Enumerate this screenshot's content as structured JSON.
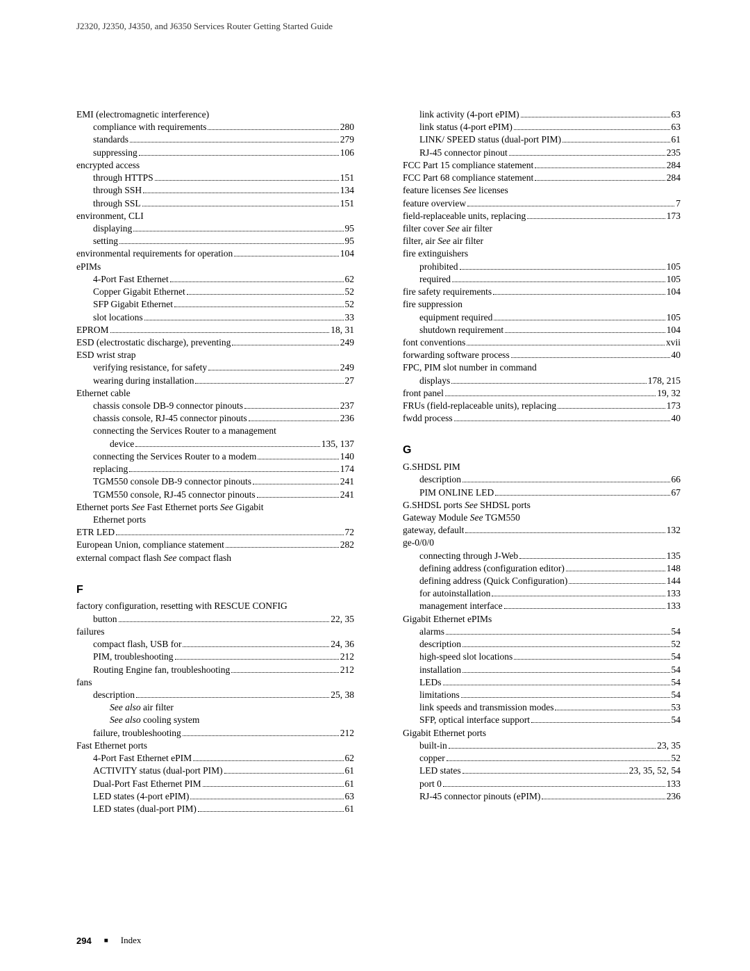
{
  "header": "J2320, J2350, J4350, and J6350 Services Router Getting Started Guide",
  "footer": {
    "page": "294",
    "label": "Index"
  },
  "left": [
    {
      "t": "plain",
      "lvl": 0,
      "txt": "EMI (electromagnetic interference)"
    },
    {
      "t": "e",
      "lvl": 1,
      "txt": "compliance with requirements",
      "pg": "280"
    },
    {
      "t": "e",
      "lvl": 1,
      "txt": "standards",
      "pg": "279"
    },
    {
      "t": "e",
      "lvl": 1,
      "txt": "suppressing",
      "pg": "106"
    },
    {
      "t": "plain",
      "lvl": 0,
      "txt": "encrypted access"
    },
    {
      "t": "e",
      "lvl": 1,
      "txt": "through HTTPS",
      "pg": "151"
    },
    {
      "t": "e",
      "lvl": 1,
      "txt": "through SSH",
      "pg": "134"
    },
    {
      "t": "e",
      "lvl": 1,
      "txt": "through SSL",
      "pg": "151"
    },
    {
      "t": "plain",
      "lvl": 0,
      "txt": "environment, CLI"
    },
    {
      "t": "e",
      "lvl": 1,
      "txt": "displaying",
      "pg": "95"
    },
    {
      "t": "e",
      "lvl": 1,
      "txt": "setting",
      "pg": "95"
    },
    {
      "t": "e",
      "lvl": 0,
      "txt": "environmental requirements for operation",
      "pg": "104"
    },
    {
      "t": "plain",
      "lvl": 0,
      "txt": "ePIMs"
    },
    {
      "t": "e",
      "lvl": 1,
      "txt": "4-Port Fast Ethernet",
      "pg": "62"
    },
    {
      "t": "e",
      "lvl": 1,
      "txt": "Copper Gigabit Ethernet",
      "pg": "52"
    },
    {
      "t": "e",
      "lvl": 1,
      "txt": "SFP Gigabit Ethernet",
      "pg": "52"
    },
    {
      "t": "e",
      "lvl": 1,
      "txt": "slot locations",
      "pg": "33"
    },
    {
      "t": "e",
      "lvl": 0,
      "txt": "EPROM",
      "pg": "18, 31"
    },
    {
      "t": "e",
      "lvl": 0,
      "txt": "ESD (electrostatic discharge), preventing",
      "pg": "249"
    },
    {
      "t": "plain",
      "lvl": 0,
      "txt": "ESD wrist strap"
    },
    {
      "t": "e",
      "lvl": 1,
      "txt": "verifying resistance, for safety",
      "pg": "249"
    },
    {
      "t": "e",
      "lvl": 1,
      "txt": "wearing during installation",
      "pg": "27"
    },
    {
      "t": "plain",
      "lvl": 0,
      "txt": "Ethernet cable"
    },
    {
      "t": "e",
      "lvl": 1,
      "txt": "chassis console DB-9 connector pinouts",
      "pg": "237"
    },
    {
      "t": "e",
      "lvl": 1,
      "txt": "chassis console, RJ-45 connector pinouts",
      "pg": "236"
    },
    {
      "t": "plain",
      "lvl": 1,
      "txt": "connecting the Services Router to a management"
    },
    {
      "t": "e",
      "lvl": 2,
      "txt": "device",
      "pg": "135, 137"
    },
    {
      "t": "e",
      "lvl": 1,
      "txt": "connecting the Services Router to a modem",
      "pg": "140"
    },
    {
      "t": "e",
      "lvl": 1,
      "txt": "replacing",
      "pg": "174"
    },
    {
      "t": "e",
      "lvl": 1,
      "txt": "TGM550 console DB-9 connector pinouts",
      "pg": "241"
    },
    {
      "t": "e",
      "lvl": 1,
      "txt": "TGM550 console, RJ-45 connector pinouts",
      "pg": "241"
    },
    {
      "t": "plain",
      "lvl": 0,
      "html": "Ethernet ports <span class=\"italic\">See</span> Fast Ethernet ports <span class=\"italic\">See</span> Gigabit"
    },
    {
      "t": "plain",
      "lvl": 1,
      "txt": "Ethernet ports"
    },
    {
      "t": "e",
      "lvl": 0,
      "txt": "ETR LED",
      "pg": "72"
    },
    {
      "t": "e",
      "lvl": 0,
      "txt": "European Union, compliance statement",
      "pg": "282"
    },
    {
      "t": "plain",
      "lvl": 0,
      "html": "external compact flash <span class=\"italic\">See</span> compact flash"
    },
    {
      "t": "heading",
      "txt": "F"
    },
    {
      "t": "plain",
      "lvl": 0,
      "txt": "factory configuration, resetting with RESCUE CONFIG"
    },
    {
      "t": "e",
      "lvl": 1,
      "txt": "button",
      "pg": "22, 35"
    },
    {
      "t": "plain",
      "lvl": 0,
      "txt": "failures"
    },
    {
      "t": "e",
      "lvl": 1,
      "txt": "compact flash, USB for",
      "pg": "24, 36"
    },
    {
      "t": "e",
      "lvl": 1,
      "txt": "PIM, troubleshooting",
      "pg": "212"
    },
    {
      "t": "e",
      "lvl": 1,
      "txt": "Routing Engine fan, troubleshooting",
      "pg": "212"
    },
    {
      "t": "plain",
      "lvl": 0,
      "txt": "fans"
    },
    {
      "t": "e",
      "lvl": 1,
      "txt": "description",
      "pg": "25, 38"
    },
    {
      "t": "plain",
      "lvl": 2,
      "html": "<span class=\"italic\">See also</span> air filter"
    },
    {
      "t": "plain",
      "lvl": 2,
      "html": "<span class=\"italic\">See also</span> cooling system"
    },
    {
      "t": "e",
      "lvl": 1,
      "txt": "failure, troubleshooting",
      "pg": "212"
    },
    {
      "t": "plain",
      "lvl": 0,
      "txt": "Fast Ethernet ports"
    },
    {
      "t": "e",
      "lvl": 1,
      "txt": "4-Port Fast Ethernet ePIM",
      "pg": "62"
    },
    {
      "t": "e",
      "lvl": 1,
      "txt": "ACTIVITY status (dual-port PIM)",
      "pg": "61"
    },
    {
      "t": "e",
      "lvl": 1,
      "txt": "Dual-Port Fast Ethernet PIM",
      "pg": "61"
    },
    {
      "t": "e",
      "lvl": 1,
      "txt": "LED states (4-port ePIM)",
      "pg": "63"
    },
    {
      "t": "e",
      "lvl": 1,
      "txt": "LED states (dual-port PIM)",
      "pg": "61"
    }
  ],
  "right": [
    {
      "t": "e",
      "lvl": 1,
      "txt": "link activity (4-port ePIM)",
      "pg": "63"
    },
    {
      "t": "e",
      "lvl": 1,
      "txt": "link status (4-port ePIM)",
      "pg": "63"
    },
    {
      "t": "e",
      "lvl": 1,
      "txt": "LINK/ SPEED status (dual-port PIM)",
      "pg": "61"
    },
    {
      "t": "e",
      "lvl": 1,
      "txt": "RJ-45 connector pinout",
      "pg": "235"
    },
    {
      "t": "e",
      "lvl": 0,
      "txt": "FCC Part 15 compliance statement",
      "pg": "284"
    },
    {
      "t": "e",
      "lvl": 0,
      "txt": "FCC Part 68 compliance statement",
      "pg": "284"
    },
    {
      "t": "plain",
      "lvl": 0,
      "html": "feature licenses <span class=\"italic\">See</span> licenses"
    },
    {
      "t": "e",
      "lvl": 0,
      "txt": "feature overview",
      "pg": "7"
    },
    {
      "t": "e",
      "lvl": 0,
      "txt": "field-replaceable units, replacing",
      "pg": "173"
    },
    {
      "t": "plain",
      "lvl": 0,
      "html": "filter cover <span class=\"italic\">See</span> air filter"
    },
    {
      "t": "plain",
      "lvl": 0,
      "html": "filter, air <span class=\"italic\">See</span> air filter"
    },
    {
      "t": "plain",
      "lvl": 0,
      "txt": "fire extinguishers"
    },
    {
      "t": "e",
      "lvl": 1,
      "txt": "prohibited",
      "pg": "105"
    },
    {
      "t": "e",
      "lvl": 1,
      "txt": "required",
      "pg": "105"
    },
    {
      "t": "e",
      "lvl": 0,
      "txt": "fire safety requirements",
      "pg": "104"
    },
    {
      "t": "plain",
      "lvl": 0,
      "txt": "fire suppression"
    },
    {
      "t": "e",
      "lvl": 1,
      "txt": "equipment required",
      "pg": "105"
    },
    {
      "t": "e",
      "lvl": 1,
      "txt": "shutdown requirement",
      "pg": "104"
    },
    {
      "t": "e",
      "lvl": 0,
      "txt": "font conventions",
      "pg": "xvii"
    },
    {
      "t": "e",
      "lvl": 0,
      "txt": "forwarding software process",
      "pg": "40"
    },
    {
      "t": "plain",
      "lvl": 0,
      "txt": "FPC, PIM slot number in command"
    },
    {
      "t": "e",
      "lvl": 1,
      "txt": "displays",
      "pg": "178, 215"
    },
    {
      "t": "e",
      "lvl": 0,
      "txt": "front panel",
      "pg": "19, 32"
    },
    {
      "t": "e",
      "lvl": 0,
      "txt": "FRUs (field-replaceable units), replacing",
      "pg": "173"
    },
    {
      "t": "e",
      "lvl": 0,
      "txt": "fwdd process",
      "pg": "40"
    },
    {
      "t": "heading",
      "txt": "G"
    },
    {
      "t": "plain",
      "lvl": 0,
      "txt": "G.SHDSL PIM"
    },
    {
      "t": "e",
      "lvl": 1,
      "txt": "description",
      "pg": "66"
    },
    {
      "t": "e",
      "lvl": 1,
      "txt": "PIM ONLINE LED",
      "pg": "67"
    },
    {
      "t": "plain",
      "lvl": 0,
      "html": "G.SHDSL ports <span class=\"italic\">See</span> SHDSL ports"
    },
    {
      "t": "plain",
      "lvl": 0,
      "html": "Gateway Module <span class=\"italic\">See</span> TGM550"
    },
    {
      "t": "e",
      "lvl": 0,
      "txt": "gateway, default",
      "pg": "132"
    },
    {
      "t": "plain",
      "lvl": 0,
      "txt": "ge-0/0/0"
    },
    {
      "t": "e",
      "lvl": 1,
      "txt": "connecting through J-Web",
      "pg": "135"
    },
    {
      "t": "e",
      "lvl": 1,
      "txt": "defining address (configuration editor)",
      "pg": "148"
    },
    {
      "t": "e",
      "lvl": 1,
      "txt": "defining address (Quick Configuration)",
      "pg": "144"
    },
    {
      "t": "e",
      "lvl": 1,
      "txt": "for autoinstallation",
      "pg": "133"
    },
    {
      "t": "e",
      "lvl": 1,
      "txt": "management interface",
      "pg": "133"
    },
    {
      "t": "plain",
      "lvl": 0,
      "txt": "Gigabit Ethernet ePIMs"
    },
    {
      "t": "e",
      "lvl": 1,
      "txt": "alarms",
      "pg": "54"
    },
    {
      "t": "e",
      "lvl": 1,
      "txt": "description",
      "pg": "52"
    },
    {
      "t": "e",
      "lvl": 1,
      "txt": "high-speed slot locations",
      "pg": "54"
    },
    {
      "t": "e",
      "lvl": 1,
      "txt": "installation",
      "pg": "54"
    },
    {
      "t": "e",
      "lvl": 1,
      "txt": "LEDs",
      "pg": "54"
    },
    {
      "t": "e",
      "lvl": 1,
      "txt": "limitations",
      "pg": "54"
    },
    {
      "t": "e",
      "lvl": 1,
      "txt": "link speeds and transmission modes ",
      "pg": "53"
    },
    {
      "t": "e",
      "lvl": 1,
      "txt": "SFP, optical interface support",
      "pg": "54"
    },
    {
      "t": "plain",
      "lvl": 0,
      "txt": "Gigabit Ethernet ports"
    },
    {
      "t": "e",
      "lvl": 1,
      "txt": "built-in",
      "pg": "23, 35"
    },
    {
      "t": "e",
      "lvl": 1,
      "txt": "copper",
      "pg": "52"
    },
    {
      "t": "e",
      "lvl": 1,
      "txt": "LED states",
      "pg": "23, 35, 52, 54"
    },
    {
      "t": "e",
      "lvl": 1,
      "txt": "port 0",
      "pg": "133"
    },
    {
      "t": "e",
      "lvl": 1,
      "txt": "RJ-45 connector pinouts (ePIM)",
      "pg": "236"
    }
  ]
}
